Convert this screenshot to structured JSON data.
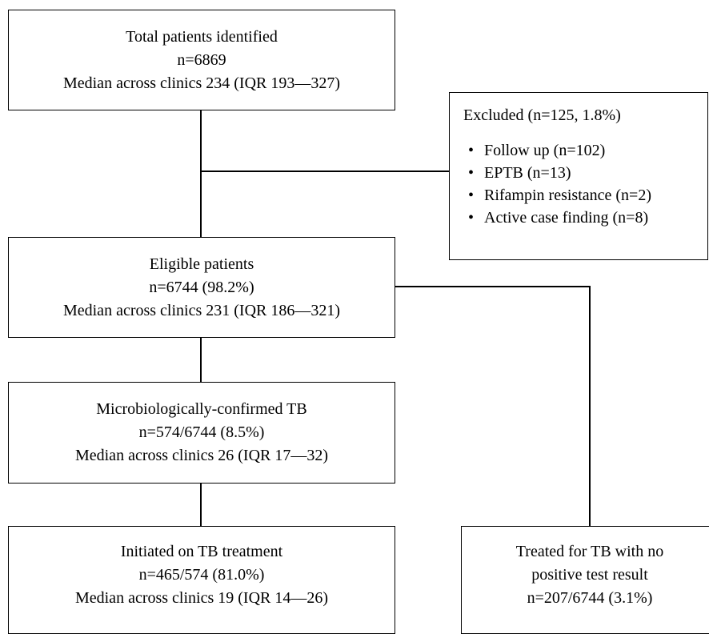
{
  "total": {
    "line1": "Total patients identified",
    "line2": "n=6869",
    "line3": "Median across clinics 234 (IQR 193—327)"
  },
  "excluded": {
    "title": "Excluded (n=125, 1.8%)",
    "items": [
      "Follow up (n=102)",
      "EPTB (n=13)",
      "Rifampin resistance (n=2)",
      "Active case finding (n=8)"
    ]
  },
  "eligible": {
    "line1": "Eligible patients",
    "line2": "n=6744 (98.2%)",
    "line3": "Median across clinics 231 (IQR 186—321)"
  },
  "confirmed": {
    "line1": "Microbiologically-confirmed TB",
    "line2": "n=574/6744 (8.5%)",
    "line3": "Median across clinics 26 (IQR 17—32)"
  },
  "initiated": {
    "line1": "Initiated on TB treatment",
    "line2": "n=465/574 (81.0%)",
    "line3": "Median across clinics 19 (IQR 14—26)"
  },
  "treated_no_positive": {
    "line1": "Treated for TB with no",
    "line2": "positive test result",
    "line3": "n=207/6744 (3.1%)"
  }
}
